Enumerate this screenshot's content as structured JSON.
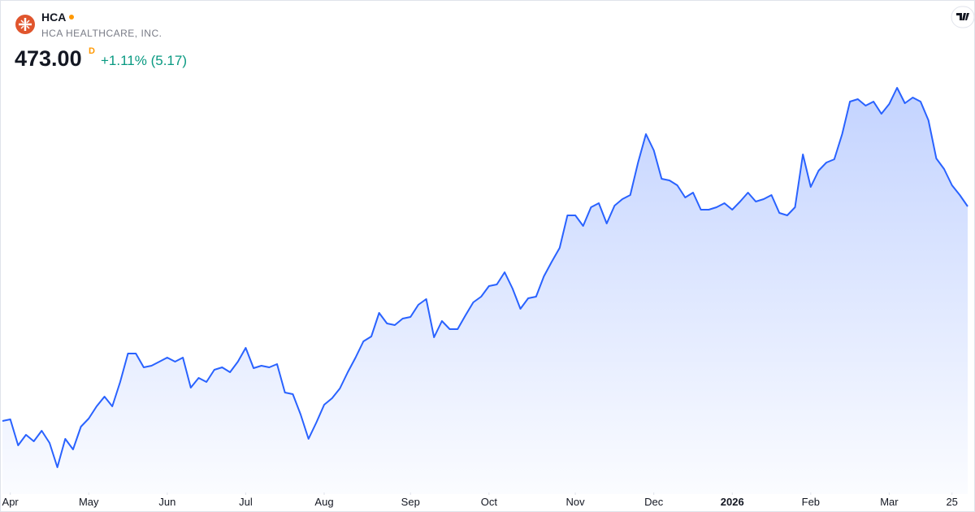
{
  "header": {
    "symbol": "HCA",
    "company": "HCA HEALTHCARE, INC.",
    "price": "473.00",
    "interval": "D",
    "change": "+1.11% (5.17)"
  },
  "chart_data": {
    "type": "line",
    "color": "#2962ff",
    "values": [
      341,
      342,
      326,
      332.5,
      328.5,
      335,
      327.5,
      312.5,
      330,
      323.5,
      337.5,
      342.5,
      350,
      356,
      350,
      365,
      382.5,
      382.5,
      374,
      375,
      377.5,
      380,
      377.5,
      380,
      361.5,
      367.5,
      365,
      372.5,
      374,
      371,
      377.5,
      386,
      373.5,
      375,
      374,
      376,
      358.5,
      357.5,
      345,
      330,
      340,
      351,
      355,
      361,
      371,
      380,
      390,
      393,
      407.5,
      401,
      400,
      404,
      405,
      412.5,
      416,
      392.5,
      402.5,
      397.5,
      397.5,
      406,
      414,
      417.5,
      424,
      425,
      432.5,
      422.5,
      410,
      416.5,
      417.5,
      430,
      439,
      447.5,
      467.5,
      467.5,
      461,
      472.5,
      475,
      462.5,
      473.5,
      477.5,
      480,
      500,
      517.5,
      507.5,
      490,
      489,
      486,
      478.5,
      481.5,
      471,
      471,
      472.5,
      475,
      471,
      476,
      481.5,
      476,
      477.5,
      480,
      469,
      467.5,
      472.5,
      505,
      485,
      495,
      500,
      502,
      517.5,
      537.5,
      539,
      535,
      537.5,
      530,
      536,
      546,
      536.5,
      540,
      537.5,
      526,
      502.5,
      496,
      486,
      480,
      473
    ],
    "xticks": [
      {
        "value": 1,
        "label": "Apr"
      },
      {
        "value": 11,
        "label": "May"
      },
      {
        "value": 21,
        "label": "Jun"
      },
      {
        "value": 31,
        "label": "Jul"
      },
      {
        "value": 41,
        "label": "Aug"
      },
      {
        "value": 52,
        "label": "Sep"
      },
      {
        "value": 62,
        "label": "Oct"
      },
      {
        "value": 73,
        "label": "Nov"
      },
      {
        "value": 83,
        "label": "Dec"
      },
      {
        "value": 93,
        "label": "2026"
      },
      {
        "value": 103,
        "label": "Feb"
      },
      {
        "value": 113,
        "label": "Mar"
      },
      {
        "value": 121,
        "label": "25"
      }
    ]
  }
}
